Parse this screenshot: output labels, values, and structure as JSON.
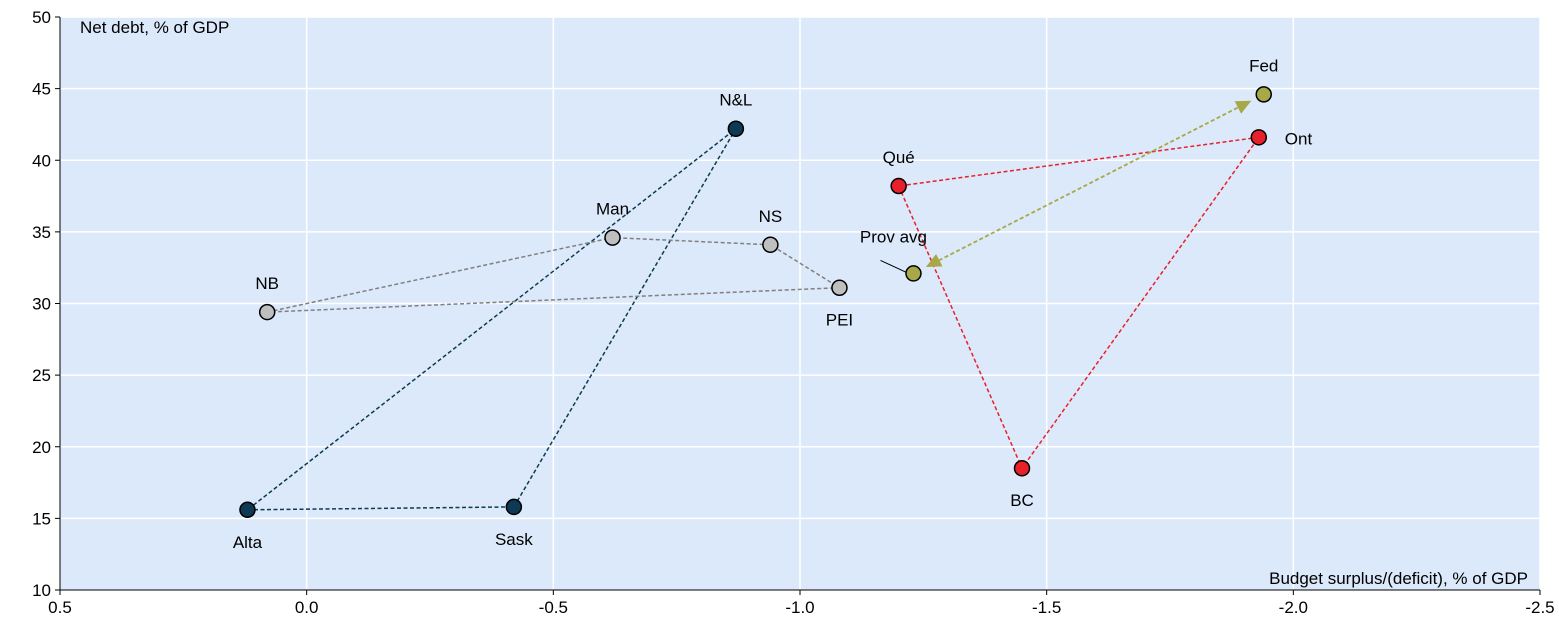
{
  "chart_data": {
    "type": "scatter",
    "title": "",
    "xlabel": "Budget surplus/(deficit), % of GDP",
    "ylabel": "Net debt, % of GDP",
    "xlim": [
      0.5,
      -2.5
    ],
    "ylim": [
      10,
      50
    ],
    "x_ticks": [
      0.5,
      0.0,
      -0.5,
      -1.0,
      -1.5,
      -2.0,
      -2.5
    ],
    "x_tick_labels": [
      "0.5",
      "0.0",
      "-0.5",
      "-1.0",
      "-1.5",
      "-2.0",
      "-2.5"
    ],
    "y_ticks": [
      10,
      15,
      20,
      25,
      30,
      35,
      40,
      45,
      50
    ],
    "y_tick_labels": [
      "10",
      "15",
      "20",
      "25",
      "30",
      "35",
      "40",
      "45",
      "50"
    ],
    "grid": true,
    "background": "#dce9fa",
    "points": [
      {
        "label": "Alta",
        "x": 0.12,
        "y": 15.6,
        "color": "#0d3a52",
        "label_pos": "below"
      },
      {
        "label": "Sask",
        "x": -0.42,
        "y": 15.8,
        "color": "#0d3a52",
        "label_pos": "below"
      },
      {
        "label": "N&L",
        "x": -0.87,
        "y": 42.2,
        "color": "#0d3a52",
        "label_pos": "above"
      },
      {
        "label": "NB",
        "x": 0.08,
        "y": 29.4,
        "color": "#bfbfbf",
        "label_pos": "above"
      },
      {
        "label": "Man",
        "x": -0.62,
        "y": 34.6,
        "color": "#bfbfbf",
        "label_pos": "above"
      },
      {
        "label": "NS",
        "x": -0.94,
        "y": 34.1,
        "color": "#bfbfbf",
        "label_pos": "above"
      },
      {
        "label": "PEI",
        "x": -1.08,
        "y": 31.1,
        "color": "#bfbfbf",
        "label_pos": "below"
      },
      {
        "label": "Qué",
        "x": -1.2,
        "y": 38.2,
        "color": "#e8202a",
        "label_pos": "above"
      },
      {
        "label": "BC",
        "x": -1.45,
        "y": 18.5,
        "color": "#e8202a",
        "label_pos": "below"
      },
      {
        "label": "Ont",
        "x": -1.93,
        "y": 41.6,
        "color": "#e8202a",
        "label_pos": "right"
      },
      {
        "label": "Fed",
        "x": -1.94,
        "y": 44.6,
        "color": "#a7a848",
        "label_pos": "above"
      },
      {
        "label": "Prov avg",
        "x": -1.23,
        "y": 32.1,
        "color": "#a7a848",
        "label_pos": "callout"
      }
    ],
    "groups": [
      {
        "color": "#0d3a52",
        "points": [
          "Alta",
          "Sask",
          "N&L"
        ],
        "closed": true
      },
      {
        "color": "#808080",
        "points": [
          "NB",
          "Man",
          "NS",
          "PEI"
        ],
        "closed": true
      },
      {
        "color": "#e8202a",
        "points": [
          "Qué",
          "BC",
          "Ont"
        ],
        "closed": true
      }
    ],
    "arrow": {
      "from": "Prov avg",
      "to": "Fed",
      "color": "#a7a848",
      "double_headed": true
    }
  }
}
